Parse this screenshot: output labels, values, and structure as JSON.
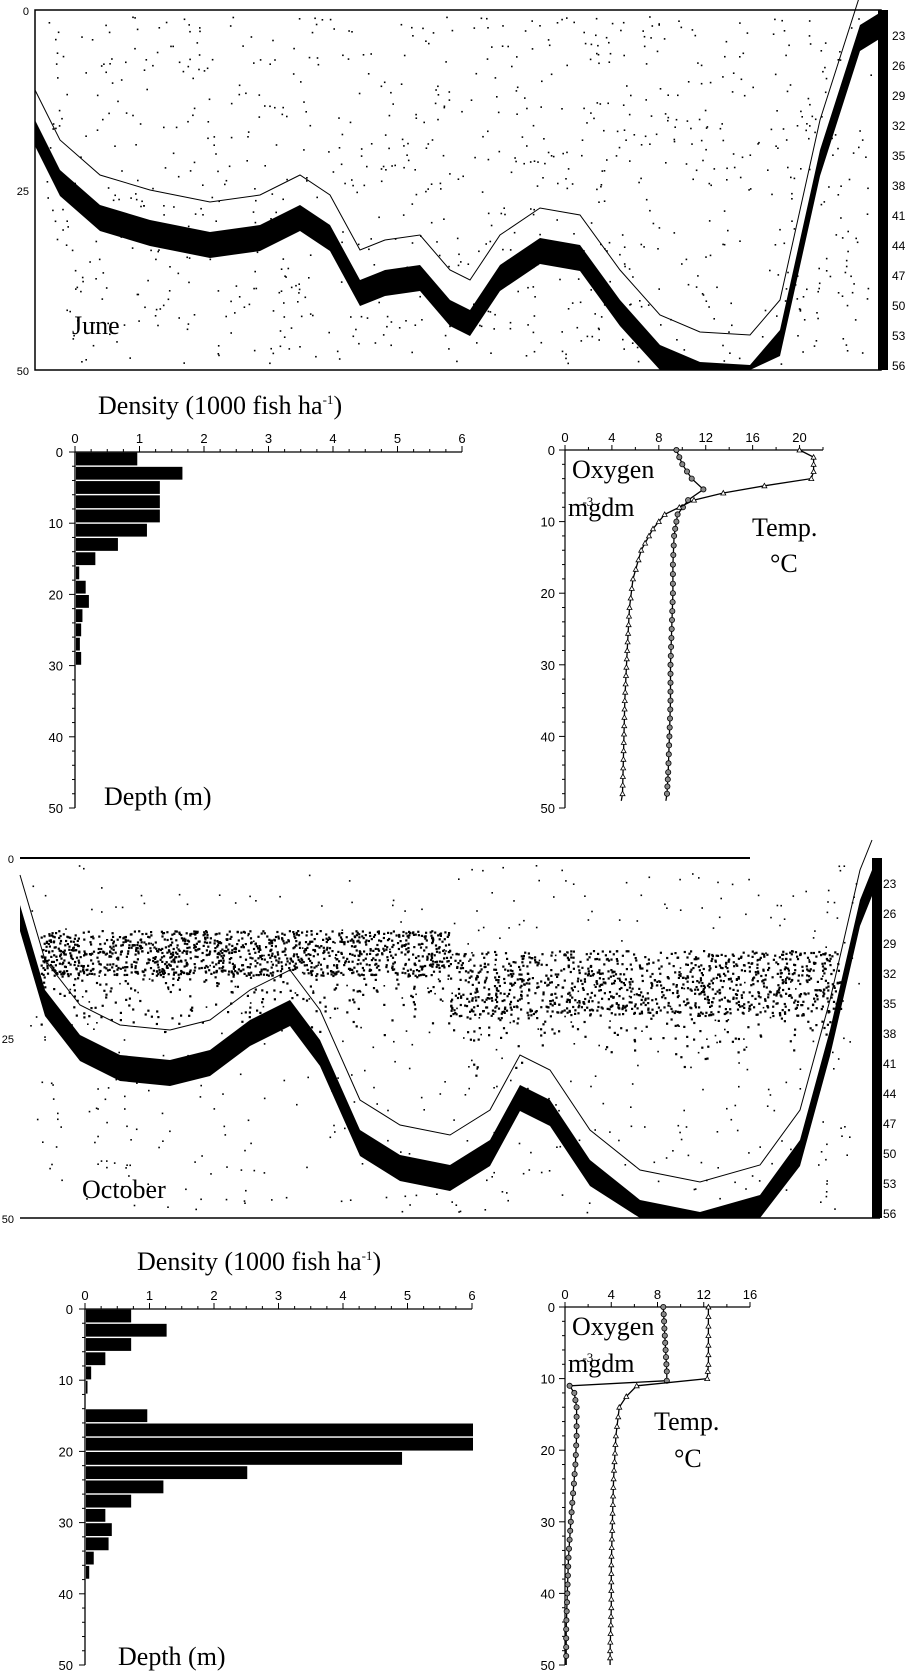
{
  "echograms": [
    {
      "month": "June",
      "left_ticks": [
        "0",
        "25",
        "50"
      ],
      "right_ticks": [
        "23",
        "26",
        "29",
        "32",
        "35",
        "38",
        "41",
        "44",
        "47",
        "50",
        "53",
        "56"
      ]
    },
    {
      "month": "October",
      "left_ticks": [
        "0",
        "25",
        "50"
      ],
      "right_ticks": [
        "23",
        "26",
        "29",
        "32",
        "35",
        "38",
        "41",
        "44",
        "47",
        "50",
        "53",
        "56"
      ]
    }
  ],
  "chart_data": [
    {
      "type": "bar",
      "orientation": "horizontal",
      "title": "Density (1000 fish ha",
      "title_superscript": "-1",
      "ylabel": "Depth (m)",
      "xlim": [
        0,
        6
      ],
      "ylim": [
        0,
        50
      ],
      "x_ticks": [
        "0",
        "1",
        "2",
        "3",
        "4",
        "5",
        "6"
      ],
      "y_ticks": [
        "0",
        "10",
        "20",
        "30",
        "40",
        "50"
      ],
      "depths": [
        0,
        2,
        4,
        6,
        8,
        10,
        12,
        14,
        16,
        18,
        20,
        22,
        24,
        26,
        28
      ],
      "values": [
        0.95,
        1.65,
        1.3,
        1.3,
        1.3,
        1.1,
        0.65,
        0.3,
        0.05,
        0.15,
        0.2,
        0.1,
        0.08,
        0.06,
        0.08
      ]
    },
    {
      "type": "line",
      "label_oxygen": "Oxygen",
      "label_oxygen_unit_a": "mgdm",
      "label_oxygen_unit_b": "-3",
      "label_temp": "Temp.",
      "label_temp_unit": "°C",
      "xlim": [
        0,
        22
      ],
      "ylim": [
        0,
        50
      ],
      "x_ticks": [
        "0",
        "4",
        "8",
        "12",
        "16",
        "20"
      ],
      "y_ticks": [
        "0",
        "10",
        "20",
        "30",
        "40",
        "50"
      ],
      "series": [
        {
          "name": "Oxygen",
          "marker": "circle",
          "points": [
            [
              9.5,
              0
            ],
            [
              10,
              2
            ],
            [
              10.8,
              4
            ],
            [
              11.8,
              5.5
            ],
            [
              10.5,
              7
            ],
            [
              9.6,
              9
            ],
            [
              9.3,
              12
            ],
            [
              9.2,
              16
            ],
            [
              9.2,
              20
            ],
            [
              9.1,
              25
            ],
            [
              9,
              30
            ],
            [
              9,
              35
            ],
            [
              8.9,
              40
            ],
            [
              8.8,
              45
            ],
            [
              8.7,
              48
            ],
            [
              8.6,
              49
            ]
          ]
        },
        {
          "name": "Temp.",
          "marker": "triangle",
          "points": [
            [
              20,
              0
            ],
            [
              21.2,
              1
            ],
            [
              21.2,
              3
            ],
            [
              21,
              4
            ],
            [
              17,
              5
            ],
            [
              13.5,
              6
            ],
            [
              11,
              7
            ],
            [
              8.5,
              9
            ],
            [
              7.5,
              11
            ],
            [
              6.5,
              14
            ],
            [
              5.8,
              18
            ],
            [
              5.5,
              22
            ],
            [
              5.3,
              28
            ],
            [
              5.1,
              35
            ],
            [
              5,
              42
            ],
            [
              4.9,
              48
            ],
            [
              4.8,
              49
            ]
          ]
        }
      ]
    },
    {
      "type": "bar",
      "orientation": "horizontal",
      "title": "Density (1000 fish  ha",
      "title_superscript": "-1",
      "ylabel": "Depth (m)",
      "xlim": [
        0,
        6
      ],
      "ylim": [
        0,
        50
      ],
      "x_ticks": [
        "0",
        "1",
        "2",
        "3",
        "4",
        "5",
        "6"
      ],
      "y_ticks": [
        "0",
        "10",
        "20",
        "30",
        "40",
        "50"
      ],
      "depths": [
        0,
        2,
        4,
        6,
        8,
        10,
        12,
        14,
        16,
        18,
        20,
        22,
        24,
        26,
        28,
        30,
        32,
        34,
        36
      ],
      "values": [
        0.7,
        1.25,
        0.7,
        0.3,
        0.08,
        0.02,
        0,
        0.95,
        6,
        6,
        4.9,
        2.5,
        1.2,
        0.7,
        0.3,
        0.4,
        0.35,
        0.12,
        0.05
      ]
    },
    {
      "type": "line",
      "label_oxygen": "Oxygen",
      "label_oxygen_unit_a": "mgdm",
      "label_oxygen_unit_b": "-3",
      "label_temp": "Temp.",
      "label_temp_unit": "°C",
      "xlim": [
        0,
        16
      ],
      "ylim": [
        0,
        50
      ],
      "x_ticks": [
        "0",
        "4",
        "8",
        "12",
        "16"
      ],
      "y_ticks": [
        "0",
        "10",
        "20",
        "30",
        "40",
        "50"
      ],
      "series": [
        {
          "name": "Oxygen",
          "marker": "circle",
          "points": [
            [
              8.5,
              0
            ],
            [
              8.6,
              3
            ],
            [
              8.7,
              6
            ],
            [
              8.8,
              9
            ],
            [
              8.8,
              10.3
            ],
            [
              0.4,
              11
            ],
            [
              0.8,
              12
            ],
            [
              1,
              14
            ],
            [
              1,
              18
            ],
            [
              0.9,
              22
            ],
            [
              0.7,
              26
            ],
            [
              0.5,
              30
            ],
            [
              0.3,
              35
            ],
            [
              0.2,
              40
            ],
            [
              0.1,
              45
            ],
            [
              0.1,
              50
            ]
          ]
        },
        {
          "name": "Temp.",
          "marker": "triangle",
          "points": [
            [
              12.4,
              0
            ],
            [
              12.4,
              4
            ],
            [
              12.4,
              8
            ],
            [
              12.3,
              10
            ],
            [
              6.2,
              11
            ],
            [
              5.3,
              12.5
            ],
            [
              4.7,
              14
            ],
            [
              4.4,
              18
            ],
            [
              4.2,
              24
            ],
            [
              4.1,
              30
            ],
            [
              4,
              36
            ],
            [
              4,
              42
            ],
            [
              3.9,
              48
            ],
            [
              3.9,
              50
            ]
          ]
        }
      ]
    }
  ]
}
